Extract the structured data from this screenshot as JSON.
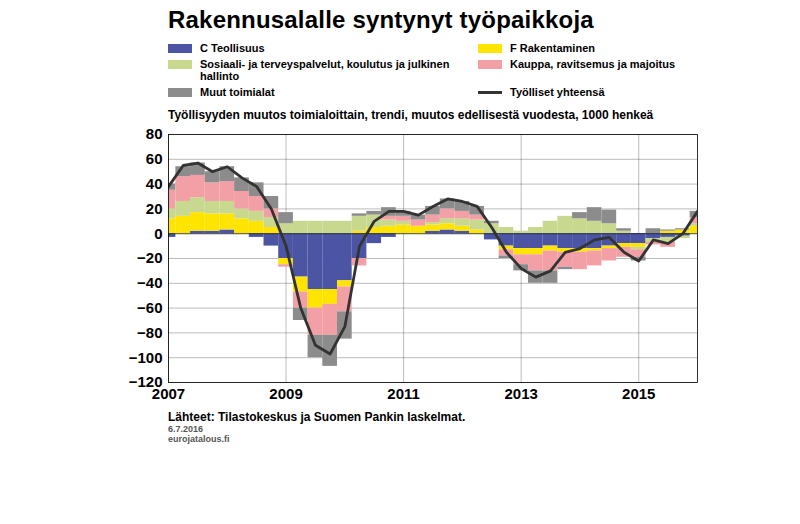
{
  "chart_data": {
    "type": "bar",
    "stacked": true,
    "title": "Rakennusalalle syntynyt työpaikkoja",
    "subtitle": "Työllisyyden muutos toimialoittain, trendi, muutos edellisestä vuodesta, 1000 henkeä",
    "source": "Lähteet: Tilastokeskus ja Suomen Pankin laskelmat.",
    "annotations": [
      "6.7.2016",
      "eurojatalous.fi"
    ],
    "grid": true,
    "x": [
      2007,
      2007.25,
      2007.5,
      2007.75,
      2008,
      2008.25,
      2008.5,
      2008.75,
      2009,
      2009.25,
      2009.5,
      2009.75,
      2010,
      2010.25,
      2010.5,
      2010.75,
      2011,
      2011.25,
      2011.5,
      2011.75,
      2012,
      2012.25,
      2012.5,
      2012.75,
      2013,
      2013.25,
      2013.5,
      2013.75,
      2014,
      2014.25,
      2014.5,
      2014.75,
      2015,
      2015.25,
      2015.5,
      2015.75,
      2016
    ],
    "xlim": [
      2007,
      2016
    ],
    "xticks": [
      2007,
      2009,
      2011,
      2013,
      2015
    ],
    "ylim": [
      -120,
      80
    ],
    "yticks": [
      -120,
      -100,
      -80,
      -60,
      -40,
      -20,
      0,
      20,
      40,
      60,
      80
    ],
    "series": [
      {
        "name": "C Teollisuus",
        "color": "#4b55a3",
        "type": "bar",
        "values": [
          -3,
          0,
          2,
          2,
          3,
          0,
          -3,
          -10,
          -20,
          -35,
          -45,
          -45,
          -38,
          -20,
          -8,
          -3,
          0,
          0,
          2,
          3,
          2,
          0,
          -5,
          -10,
          -12,
          -12,
          -10,
          -12,
          -12,
          -12,
          -10,
          -8,
          -8,
          -4,
          -3,
          -2,
          0
        ]
      },
      {
        "name": "F Rakentaminen",
        "color": "#ffe400",
        "type": "bar",
        "values": [
          12,
          14,
          15,
          14,
          13,
          12,
          10,
          5,
          -5,
          -12,
          -15,
          -12,
          -5,
          2,
          5,
          6,
          7,
          6,
          5,
          5,
          4,
          3,
          0,
          -3,
          -5,
          -5,
          -4,
          -3,
          -3,
          -2,
          -2,
          -3,
          -3,
          0,
          2,
          3,
          6
        ]
      },
      {
        "name": "Sosiaali- ja terveyspalvelut, koulutus ja julkinen hallinto",
        "color": "#c8d88e",
        "type": "bar",
        "values": [
          8,
          12,
          12,
          10,
          10,
          8,
          8,
          8,
          8,
          10,
          10,
          10,
          10,
          12,
          10,
          5,
          3,
          0,
          2,
          4,
          6,
          8,
          8,
          5,
          2,
          5,
          10,
          14,
          12,
          10,
          8,
          2,
          -2,
          -3,
          -4,
          -2,
          2
        ]
      },
      {
        "name": "Kauppa, ravitsemus ja majoitus",
        "color": "#f2a0a6",
        "type": "bar",
        "values": [
          15,
          20,
          18,
          15,
          16,
          14,
          12,
          7,
          -2,
          -13,
          -22,
          -25,
          -20,
          -6,
          0,
          3,
          4,
          5,
          6,
          8,
          6,
          4,
          0,
          -5,
          -8,
          -13,
          -16,
          -12,
          -14,
          -12,
          -10,
          -8,
          -6,
          -2,
          -4,
          0,
          5
        ]
      },
      {
        "name": "Muut toimialat",
        "color": "#8c8c8c",
        "type": "bar",
        "values": [
          5,
          8,
          10,
          9,
          12,
          11,
          11,
          10,
          9,
          -10,
          -18,
          -25,
          -22,
          2,
          3,
          7,
          4,
          4,
          7,
          8,
          8,
          7,
          2,
          -2,
          -5,
          -10,
          -10,
          -2,
          5,
          11,
          11,
          2,
          -3,
          4,
          1,
          1,
          5
        ]
      },
      {
        "name": "Työlliset yhteensä",
        "color": "#333333",
        "type": "line",
        "values": [
          38,
          55,
          57,
          50,
          54,
          45,
          38,
          20,
          -10,
          -60,
          -90,
          -97,
          -75,
          -10,
          10,
          18,
          18,
          15,
          22,
          28,
          26,
          22,
          5,
          -15,
          -28,
          -35,
          -30,
          -15,
          -12,
          -5,
          -3,
          -15,
          -22,
          -5,
          -8,
          0,
          18
        ]
      }
    ]
  }
}
